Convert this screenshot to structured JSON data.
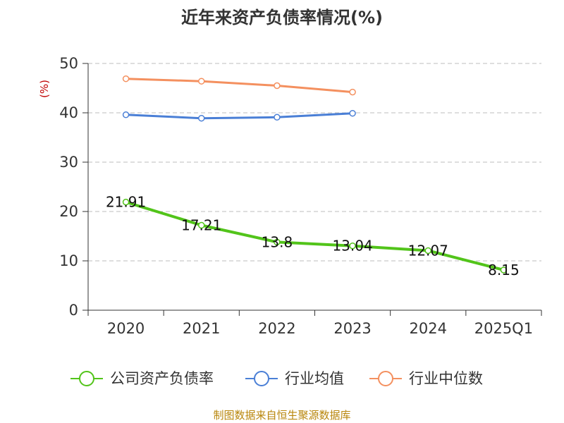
{
  "chart_data": {
    "type": "line",
    "title": "近年来资产负债率情况(%)",
    "ylabel": "(%)",
    "xlabel": "",
    "categories": [
      "2020",
      "2021",
      "2022",
      "2023",
      "2024",
      "2025Q1"
    ],
    "ylim": [
      0,
      50
    ],
    "yticks": [
      0,
      10,
      20,
      30,
      40,
      50
    ],
    "grid": true,
    "legend_position": "bottom",
    "series": [
      {
        "name": "公司资产负债率",
        "color": "#52c41a",
        "values": [
          21.91,
          17.21,
          13.8,
          13.04,
          12.07,
          8.15
        ],
        "labels": [
          "21.91",
          "17.21",
          "13.8",
          "13.04",
          "12.07",
          "8.15"
        ]
      },
      {
        "name": "行业均值",
        "color": "#4a7fd6",
        "values": [
          39.6,
          38.9,
          39.1,
          39.9,
          null,
          null
        ]
      },
      {
        "name": "行业中位数",
        "color": "#f4905f",
        "values": [
          46.9,
          46.4,
          45.5,
          44.2,
          null,
          null
        ]
      }
    ]
  },
  "source": "制图数据来自恒生聚源数据库"
}
